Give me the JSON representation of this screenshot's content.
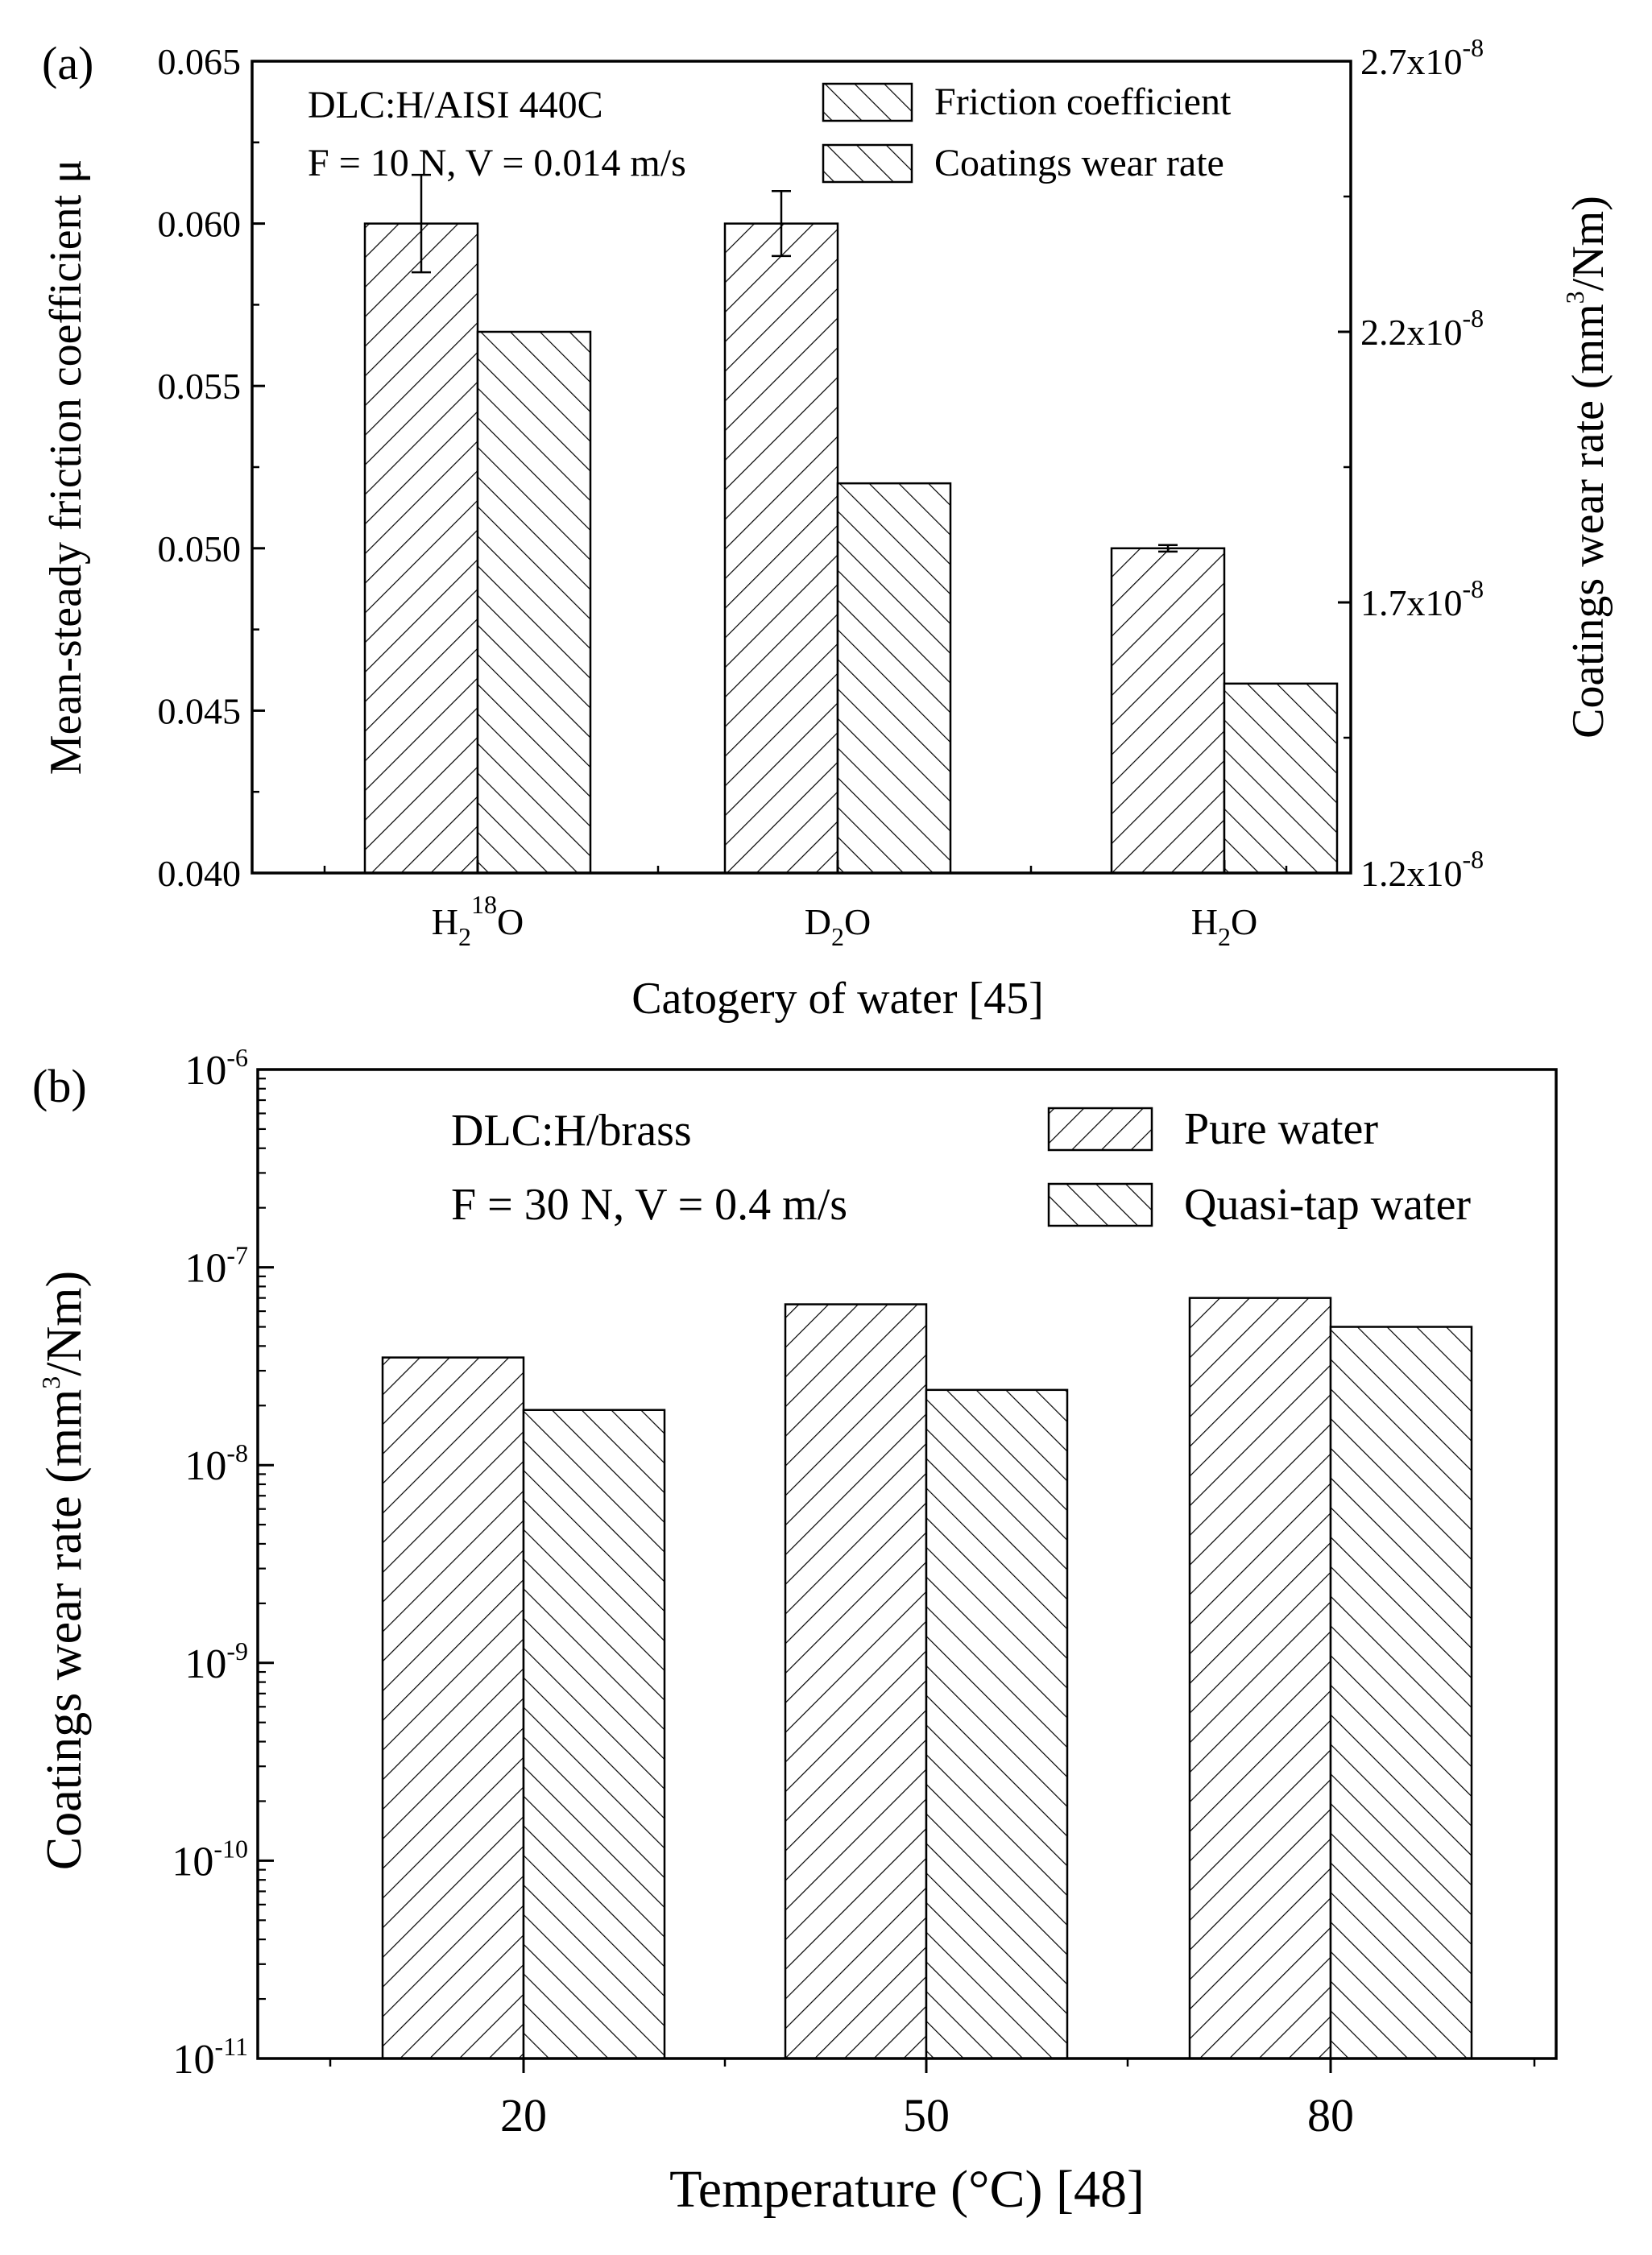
{
  "chart_data": [
    {
      "panel": "(a)",
      "type": "bar",
      "categories": [
        {
          "base": "H",
          "sub": "2",
          "sup": "18",
          "tail": "O"
        },
        {
          "base": "D",
          "sub": "2",
          "sup": "",
          "tail": "O"
        },
        {
          "base": "H",
          "sub": "2",
          "sup": "",
          "tail": "O"
        }
      ],
      "series": [
        {
          "name": "Friction coefficient",
          "axis": "left",
          "values": [
            0.06,
            0.06,
            0.05
          ],
          "errors": [
            0.0015,
            0.001,
            0.0001
          ]
        },
        {
          "name": "Coatings wear rate",
          "axis": "right",
          "values": [
            2.2e-08,
            1.92e-08,
            1.55e-08
          ]
        }
      ],
      "xlabel": "Catogery of water [45]",
      "ylabel": "Mean-steady friction coefficient μ",
      "ylabel_right": {
        "text": "Coatings wear rate (mm",
        "sup": "3",
        "tail": "/Nm)"
      },
      "ylim": [
        0.04,
        0.065
      ],
      "yticks": [
        "0.040",
        "0.045",
        "0.050",
        "0.055",
        "0.060",
        "0.065"
      ],
      "ylim_right": [
        1.2e-08,
        2.7e-08
      ],
      "yticks_right": [
        {
          "mant": "1.2x10",
          "exp": "-8"
        },
        {
          "mant": "1.7x10",
          "exp": "-8"
        },
        {
          "mant": "2.2x10",
          "exp": "-8"
        },
        {
          "mant": "2.7x10",
          "exp": "-8"
        }
      ],
      "annotations": [
        "DLC:H/AISI 440C",
        "F = 10 N, V = 0.014 m/s"
      ],
      "legend_position": "top-right"
    },
    {
      "panel": "(b)",
      "type": "bar",
      "yscale": "log",
      "categories": [
        "20",
        "50",
        "80"
      ],
      "series": [
        {
          "name": "Pure water",
          "values": [
            3.5e-08,
            6.5e-08,
            7e-08
          ]
        },
        {
          "name": "Quasi-tap water",
          "values": [
            1.9e-08,
            2.4e-08,
            5e-08
          ]
        }
      ],
      "xlabel": "Temperature (°C) [48]",
      "ylabel": {
        "text": "Coatings wear rate (mm",
        "sup": "3",
        "tail": "/Nm)"
      },
      "ylim": [
        1e-11,
        1e-06
      ],
      "yticks": [
        {
          "mant": "10",
          "exp": "-11"
        },
        {
          "mant": "10",
          "exp": "-10"
        },
        {
          "mant": "10",
          "exp": "-9"
        },
        {
          "mant": "10",
          "exp": "-8"
        },
        {
          "mant": "10",
          "exp": "-7"
        },
        {
          "mant": "10",
          "exp": "-6"
        }
      ],
      "annotations": [
        "DLC:H/brass",
        "F = 30 N, V = 0.4 m/s"
      ],
      "legend_position": "top-right"
    }
  ]
}
